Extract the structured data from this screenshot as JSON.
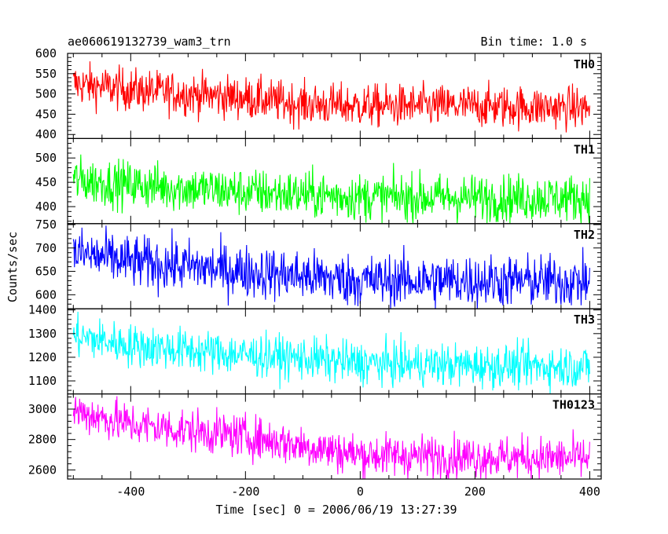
{
  "header": {
    "title_left": "ae060619132739_wam3_trn",
    "title_right": "Bin time: 1.0 s"
  },
  "axes": {
    "ylabel": "Counts/sec",
    "xlabel": "Time [sec] 0 = 2006/06/19 13:27:39"
  },
  "chart_data": {
    "type": "line",
    "title": "ae060619132739_wam3_trn",
    "bin_time_label": "Bin time: 1.0 s",
    "xlabel": "Time [sec] 0 = 2006/06/19 13:27:39",
    "ylabel": "Counts/sec",
    "xlim": [
      -510,
      420
    ],
    "xticks": [
      -400,
      -200,
      0,
      200,
      400
    ],
    "x_range": [
      -500,
      400
    ],
    "x_step": 1,
    "panels": [
      {
        "name": "TH0",
        "color": "#ff0000",
        "ylim": [
          390,
          600
        ],
        "yticks": [
          400,
          450,
          500,
          550,
          600
        ],
        "trend": [
          [
            -500,
            525
          ],
          [
            -400,
            510
          ],
          [
            -200,
            490
          ],
          [
            -100,
            475
          ],
          [
            0,
            470
          ],
          [
            200,
            470
          ],
          [
            400,
            465
          ]
        ],
        "noise": 26
      },
      {
        "name": "TH1",
        "color": "#00ff00",
        "ylim": [
          365,
          540
        ],
        "yticks": [
          400,
          450,
          500
        ],
        "trend": [
          [
            -500,
            455
          ],
          [
            -400,
            445
          ],
          [
            -200,
            430
          ],
          [
            -100,
            425
          ],
          [
            0,
            420
          ],
          [
            200,
            418
          ],
          [
            400,
            418
          ]
        ],
        "noise": 24
      },
      {
        "name": "TH2",
        "color": "#0000ff",
        "ylim": [
          570,
          752
        ],
        "yticks": [
          600,
          650,
          700,
          750
        ],
        "trend": [
          [
            -500,
            690
          ],
          [
            -400,
            670
          ],
          [
            -200,
            650
          ],
          [
            -100,
            640
          ],
          [
            0,
            630
          ],
          [
            200,
            630
          ],
          [
            400,
            628
          ]
        ],
        "noise": 28
      },
      {
        "name": "TH3",
        "color": "#00ffff",
        "ylim": [
          1045,
          1405
        ],
        "yticks": [
          1100,
          1200,
          1300,
          1400
        ],
        "trend": [
          [
            -500,
            1290
          ],
          [
            -400,
            1250
          ],
          [
            -200,
            1210
          ],
          [
            -100,
            1195
          ],
          [
            0,
            1175
          ],
          [
            200,
            1165
          ],
          [
            400,
            1160
          ]
        ],
        "noise": 45
      },
      {
        "name": "TH0123",
        "color": "#ff00ff",
        "ylim": [
          2540,
          3100
        ],
        "yticks": [
          2600,
          2800,
          3000
        ],
        "trend": [
          [
            -500,
            2990
          ],
          [
            -400,
            2900
          ],
          [
            -200,
            2820
          ],
          [
            -100,
            2760
          ],
          [
            0,
            2700
          ],
          [
            200,
            2685
          ],
          [
            400,
            2675
          ]
        ],
        "noise": 70
      }
    ]
  }
}
